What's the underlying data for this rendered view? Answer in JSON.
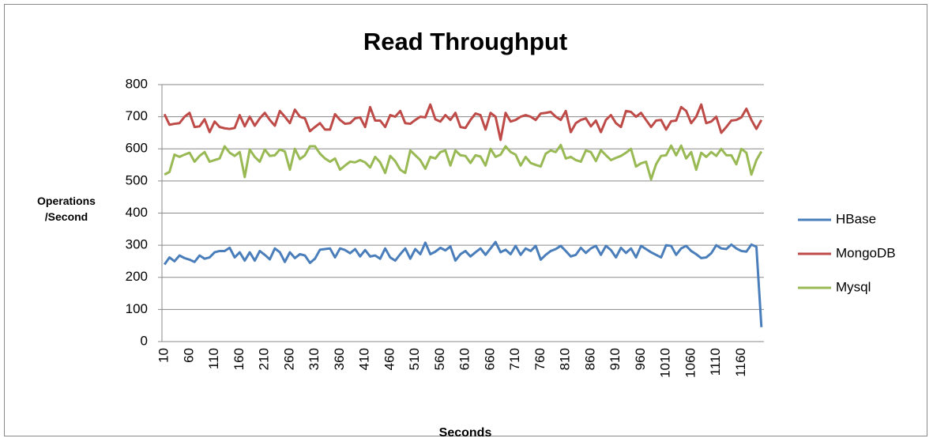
{
  "chart_data": {
    "type": "line",
    "title": "Read Throughput",
    "x_label": "Seconds",
    "y_label": "Operations /Second",
    "categories": [
      10,
      null,
      null,
      null,
      null,
      60,
      null,
      null,
      null,
      null,
      110,
      null,
      null,
      null,
      null,
      160,
      null,
      null,
      null,
      null,
      210,
      null,
      null,
      null,
      null,
      260,
      null,
      null,
      null,
      null,
      310,
      null,
      null,
      null,
      null,
      360,
      null,
      null,
      null,
      null,
      410,
      null,
      null,
      null,
      null,
      460,
      null,
      null,
      null,
      null,
      510,
      null,
      null,
      null,
      null,
      560,
      null,
      null,
      null,
      null,
      610,
      null,
      null,
      null,
      null,
      660,
      null,
      null,
      null,
      null,
      710,
      null,
      null,
      null,
      null,
      760,
      null,
      null,
      null,
      null,
      810,
      null,
      null,
      null,
      null,
      860,
      null,
      null,
      null,
      null,
      910,
      null,
      null,
      null,
      null,
      960,
      null,
      null,
      null,
      null,
      1010,
      null,
      null,
      null,
      null,
      1060,
      null,
      null,
      null,
      null,
      1110,
      null,
      null,
      null,
      null,
      1160,
      null,
      null,
      null,
      null
    ],
    "series": [
      {
        "name": "HBase",
        "color": "#4a7ebb",
        "values": [
          240,
          262,
          250,
          268,
          260,
          255,
          248,
          268,
          258,
          262,
          278,
          282,
          282,
          292,
          262,
          278,
          252,
          278,
          252,
          282,
          270,
          256,
          290,
          278,
          248,
          278,
          260,
          272,
          268,
          245,
          258,
          286,
          288,
          290,
          262,
          290,
          285,
          275,
          288,
          265,
          285,
          265,
          268,
          258,
          290,
          262,
          252,
          272,
          290,
          258,
          288,
          272,
          308,
          272,
          280,
          292,
          284,
          296,
          252,
          272,
          282,
          265,
          278,
          290,
          270,
          290,
          310,
          278,
          286,
          272,
          298,
          270,
          290,
          282,
          298,
          255,
          270,
          282,
          288,
          298,
          282,
          265,
          270,
          292,
          276,
          290,
          298,
          270,
          298,
          285,
          262,
          292,
          276,
          290,
          262,
          298,
          288,
          278,
          270,
          262,
          300,
          298,
          270,
          290,
          298,
          282,
          272,
          260,
          262,
          275,
          300,
          290,
          288,
          302,
          290,
          282,
          280,
          302,
          295,
          45
        ]
      },
      {
        "name": "MongoDB",
        "color": "#be4b48",
        "values": [
          708,
          675,
          678,
          680,
          700,
          712,
          668,
          670,
          692,
          652,
          685,
          668,
          664,
          662,
          665,
          705,
          670,
          700,
          672,
          695,
          712,
          690,
          672,
          718,
          700,
          680,
          722,
          700,
          695,
          655,
          668,
          680,
          660,
          660,
          708,
          690,
          678,
          680,
          695,
          698,
          668,
          730,
          688,
          688,
          668,
          705,
          700,
          718,
          680,
          678,
          690,
          700,
          698,
          738,
          692,
          685,
          705,
          690,
          712,
          668,
          665,
          690,
          710,
          705,
          660,
          712,
          700,
          628,
          712,
          685,
          690,
          700,
          705,
          700,
          690,
          710,
          712,
          715,
          700,
          690,
          718,
          652,
          680,
          690,
          695,
          670,
          688,
          652,
          690,
          705,
          680,
          668,
          718,
          715,
          700,
          712,
          690,
          668,
          688,
          690,
          660,
          686,
          688,
          730,
          718,
          680,
          700,
          738,
          680,
          685,
          700,
          650,
          668,
          688,
          690,
          698,
          725,
          690,
          662,
          690
        ]
      },
      {
        "name": "Mysql",
        "color": "#98b954",
        "values": [
          520,
          528,
          582,
          575,
          582,
          588,
          560,
          578,
          590,
          560,
          565,
          570,
          608,
          588,
          578,
          590,
          512,
          598,
          575,
          560,
          598,
          578,
          580,
          598,
          592,
          535,
          600,
          568,
          580,
          608,
          608,
          585,
          570,
          560,
          570,
          535,
          548,
          560,
          558,
          565,
          558,
          542,
          575,
          558,
          525,
          578,
          562,
          535,
          525,
          595,
          580,
          565,
          538,
          575,
          570,
          590,
          595,
          548,
          595,
          580,
          578,
          556,
          580,
          576,
          548,
          600,
          575,
          582,
          608,
          590,
          582,
          548,
          575,
          556,
          550,
          545,
          585,
          595,
          590,
          612,
          570,
          575,
          565,
          560,
          595,
          590,
          562,
          596,
          580,
          565,
          572,
          578,
          588,
          600,
          545,
          555,
          560,
          505,
          552,
          578,
          580,
          610,
          580,
          610,
          570,
          590,
          535,
          588,
          575,
          590,
          578,
          600,
          580,
          580,
          552,
          600,
          588,
          520,
          565,
          592
        ]
      }
    ],
    "ylim": [
      0,
      800
    ],
    "yticks": [
      0,
      100,
      200,
      300,
      400,
      500,
      600,
      700,
      800
    ],
    "grid": true,
    "legend": "right"
  }
}
